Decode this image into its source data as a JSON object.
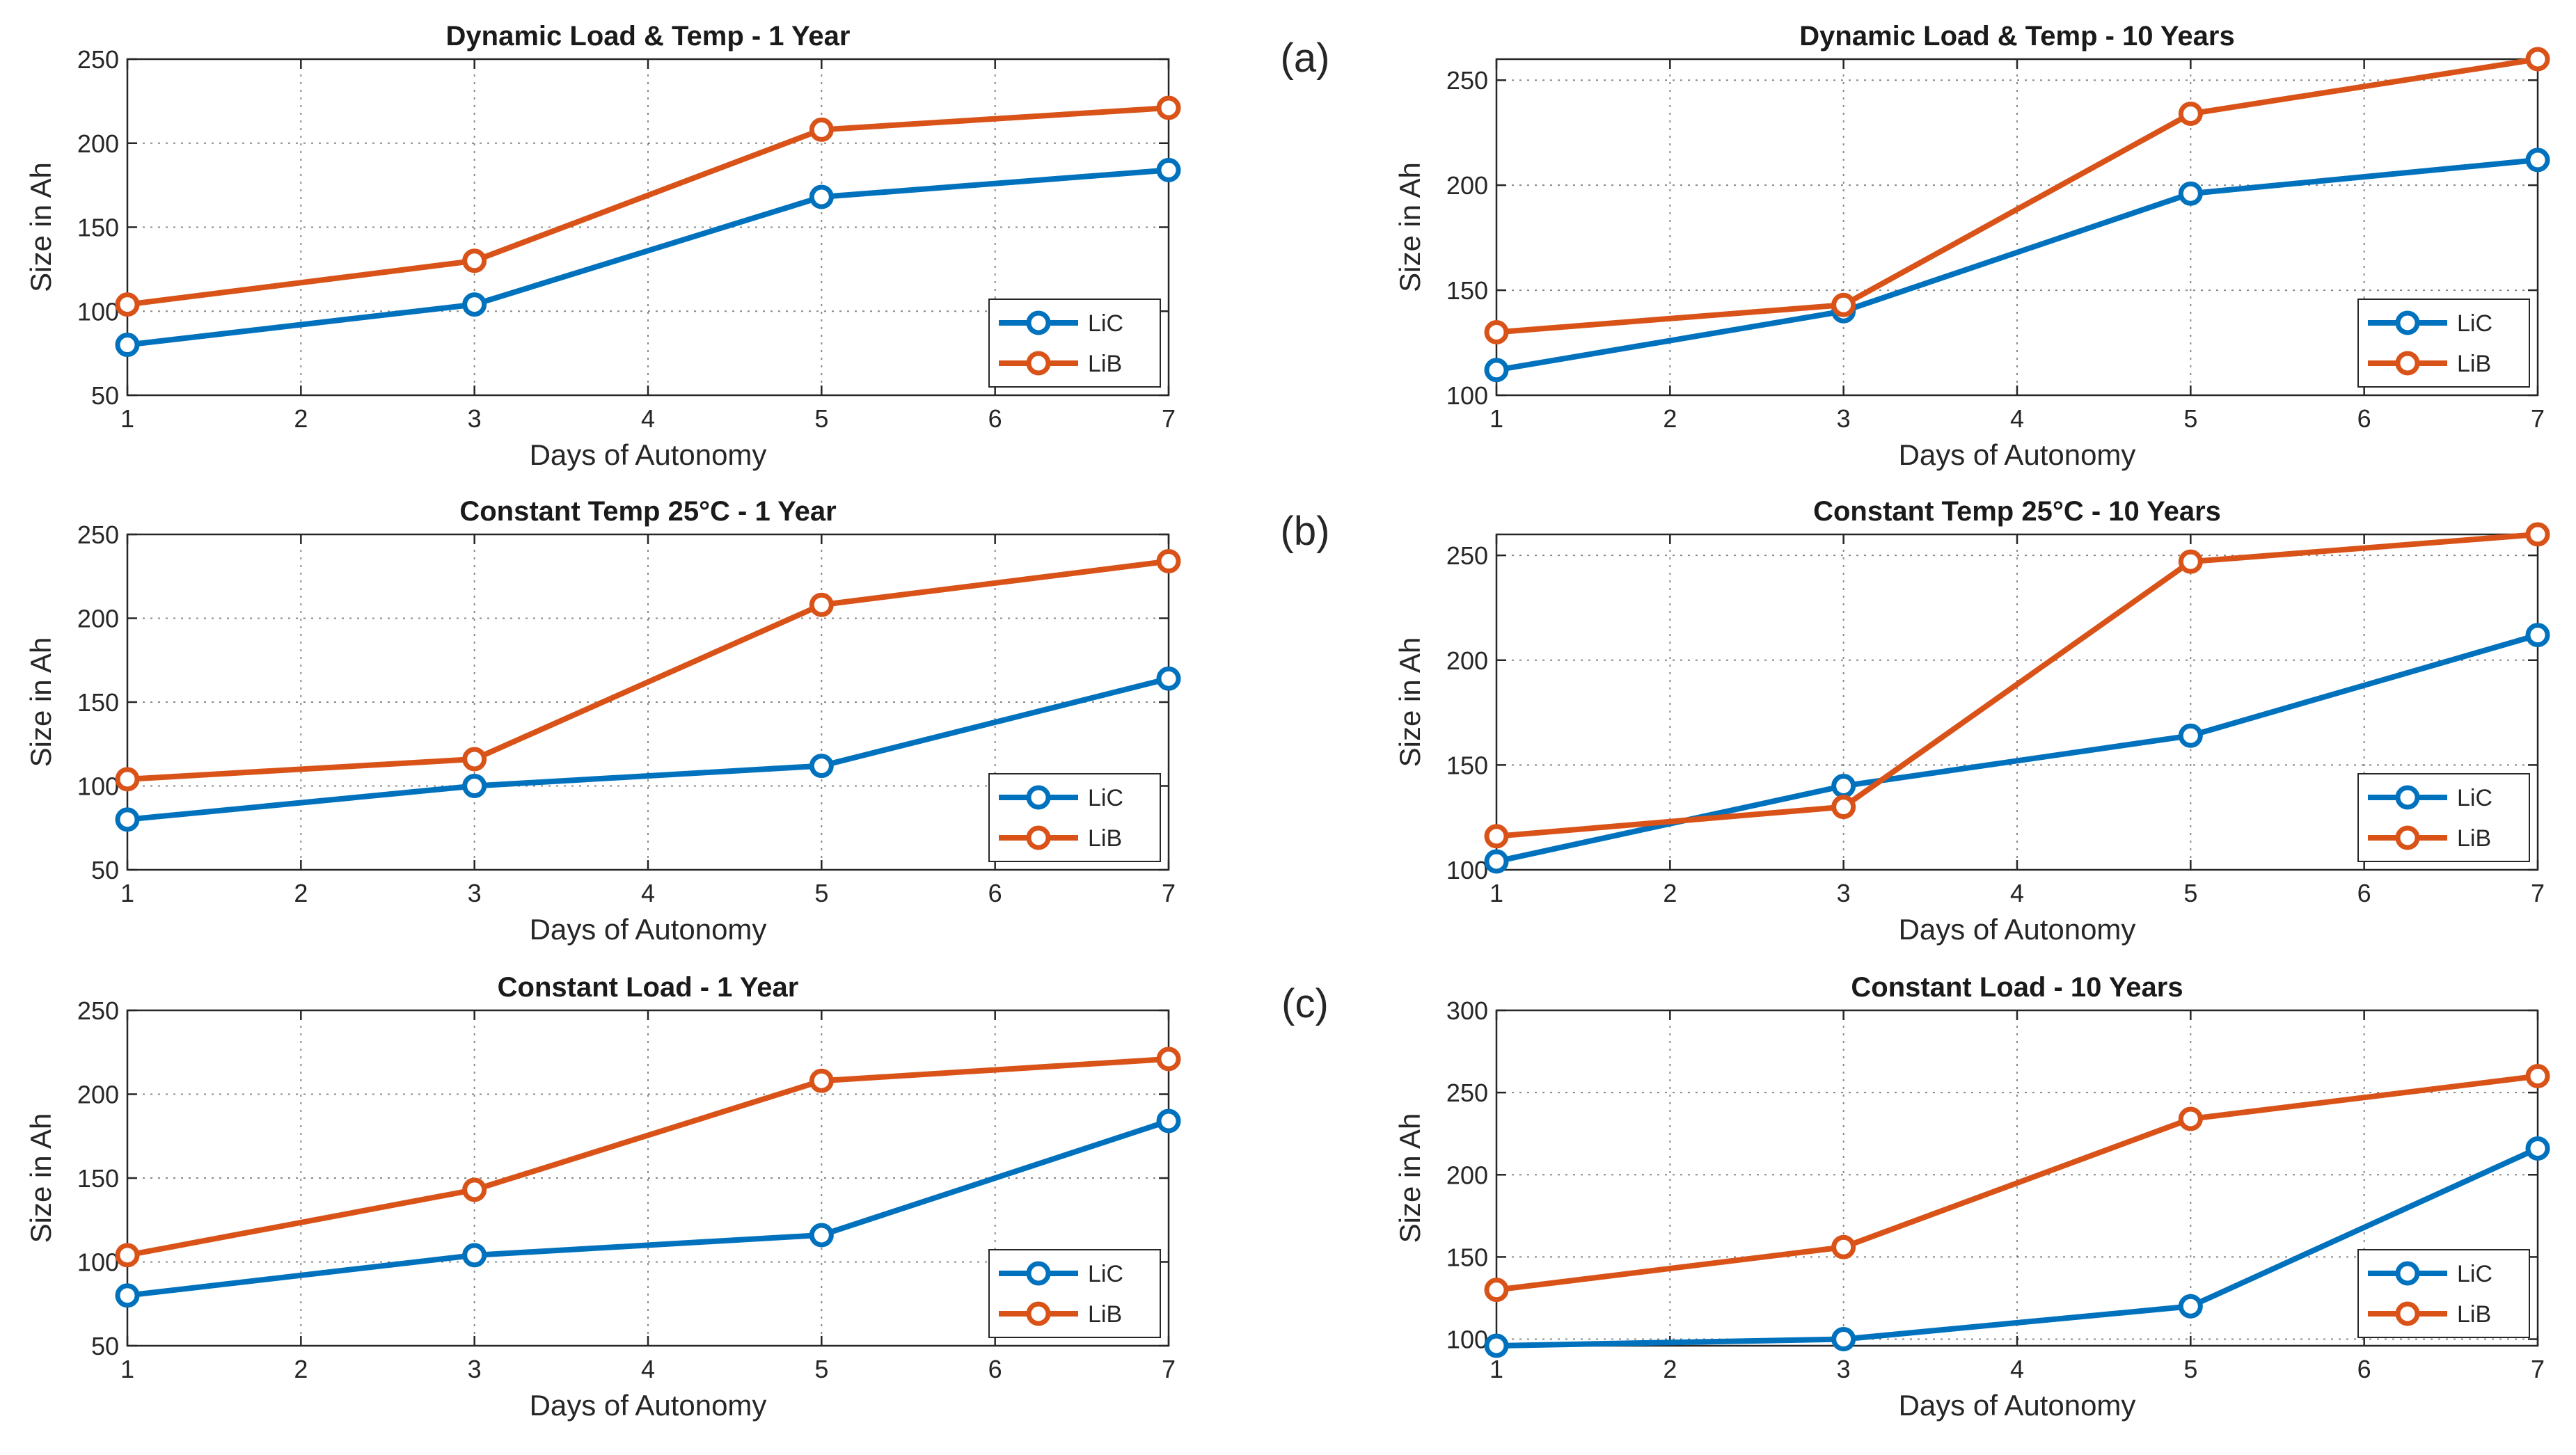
{
  "figure": {
    "panel_labels": [
      "(a)",
      "(b)",
      "(c)"
    ],
    "colors": {
      "LiC": "#0072bd",
      "LiB": "#d95319"
    }
  },
  "chart_data": [
    {
      "type": "line",
      "title": "Dynamic Load & Temp - 1 Year",
      "xlabel": "Days of Autonomy",
      "ylabel": "Size in Ah",
      "x": [
        1,
        3,
        5,
        7
      ],
      "xlim": [
        1,
        7
      ],
      "xticks": [
        1,
        2,
        3,
        4,
        5,
        6,
        7
      ],
      "ylim": [
        50,
        250
      ],
      "yticks": [
        50,
        100,
        150,
        200,
        250
      ],
      "grid": true,
      "legend_position": "bottom-right",
      "series": [
        {
          "name": "LiC",
          "values": [
            80,
            104,
            168,
            184
          ]
        },
        {
          "name": "LiB",
          "values": [
            104,
            130,
            208,
            221
          ]
        }
      ]
    },
    {
      "type": "line",
      "title": "Dynamic Load & Temp - 10 Years",
      "xlabel": "Days of Autonomy",
      "ylabel": "Size in Ah",
      "x": [
        1,
        3,
        5,
        7
      ],
      "xlim": [
        1,
        7
      ],
      "xticks": [
        1,
        2,
        3,
        4,
        5,
        6,
        7
      ],
      "ylim": [
        100,
        260
      ],
      "yticks": [
        100,
        150,
        200,
        250
      ],
      "grid": true,
      "legend_position": "bottom-right",
      "series": [
        {
          "name": "LiC",
          "values": [
            112,
            140,
            196,
            212
          ]
        },
        {
          "name": "LiB",
          "values": [
            130,
            143,
            234,
            260
          ]
        }
      ]
    },
    {
      "type": "line",
      "title": "Constant Temp 25°C - 1 Year",
      "xlabel": "Days of Autonomy",
      "ylabel": "Size in Ah",
      "x": [
        1,
        3,
        5,
        7
      ],
      "xlim": [
        1,
        7
      ],
      "xticks": [
        1,
        2,
        3,
        4,
        5,
        6,
        7
      ],
      "ylim": [
        50,
        250
      ],
      "yticks": [
        50,
        100,
        150,
        200,
        250
      ],
      "grid": true,
      "legend_position": "bottom-right",
      "series": [
        {
          "name": "LiC",
          "values": [
            80,
            100,
            112,
            164
          ]
        },
        {
          "name": "LiB",
          "values": [
            104,
            116,
            208,
            234
          ]
        }
      ]
    },
    {
      "type": "line",
      "title": "Constant Temp 25°C - 10 Years",
      "xlabel": "Days of Autonomy",
      "ylabel": "Size in Ah",
      "x": [
        1,
        3,
        5,
        7
      ],
      "xlim": [
        1,
        7
      ],
      "xticks": [
        1,
        2,
        3,
        4,
        5,
        6,
        7
      ],
      "ylim": [
        100,
        260
      ],
      "yticks": [
        100,
        150,
        200,
        250
      ],
      "grid": true,
      "legend_position": "bottom-right",
      "series": [
        {
          "name": "LiC",
          "values": [
            104,
            140,
            164,
            212
          ]
        },
        {
          "name": "LiB",
          "values": [
            116,
            130,
            247,
            260
          ]
        }
      ]
    },
    {
      "type": "line",
      "title": "Constant Load - 1 Year",
      "xlabel": "Days of Autonomy",
      "ylabel": "Size in Ah",
      "x": [
        1,
        3,
        5,
        7
      ],
      "xlim": [
        1,
        7
      ],
      "xticks": [
        1,
        2,
        3,
        4,
        5,
        6,
        7
      ],
      "ylim": [
        50,
        250
      ],
      "yticks": [
        50,
        100,
        150,
        200,
        250
      ],
      "grid": true,
      "legend_position": "bottom-right",
      "series": [
        {
          "name": "LiC",
          "values": [
            80,
            104,
            116,
            184
          ]
        },
        {
          "name": "LiB",
          "values": [
            104,
            143,
            208,
            221
          ]
        }
      ]
    },
    {
      "type": "line",
      "title": "Constant Load - 10 Years",
      "xlabel": "Days of Autonomy",
      "ylabel": "Size in Ah",
      "x": [
        1,
        3,
        5,
        7
      ],
      "xlim": [
        1,
        7
      ],
      "xticks": [
        1,
        2,
        3,
        4,
        5,
        6,
        7
      ],
      "ylim": [
        96,
        300
      ],
      "yticks": [
        100,
        150,
        200,
        250,
        300
      ],
      "grid": true,
      "legend_position": "bottom-right",
      "series": [
        {
          "name": "LiC",
          "values": [
            96,
            100,
            120,
            216
          ]
        },
        {
          "name": "LiB",
          "values": [
            130,
            156,
            234,
            260
          ]
        }
      ]
    }
  ]
}
